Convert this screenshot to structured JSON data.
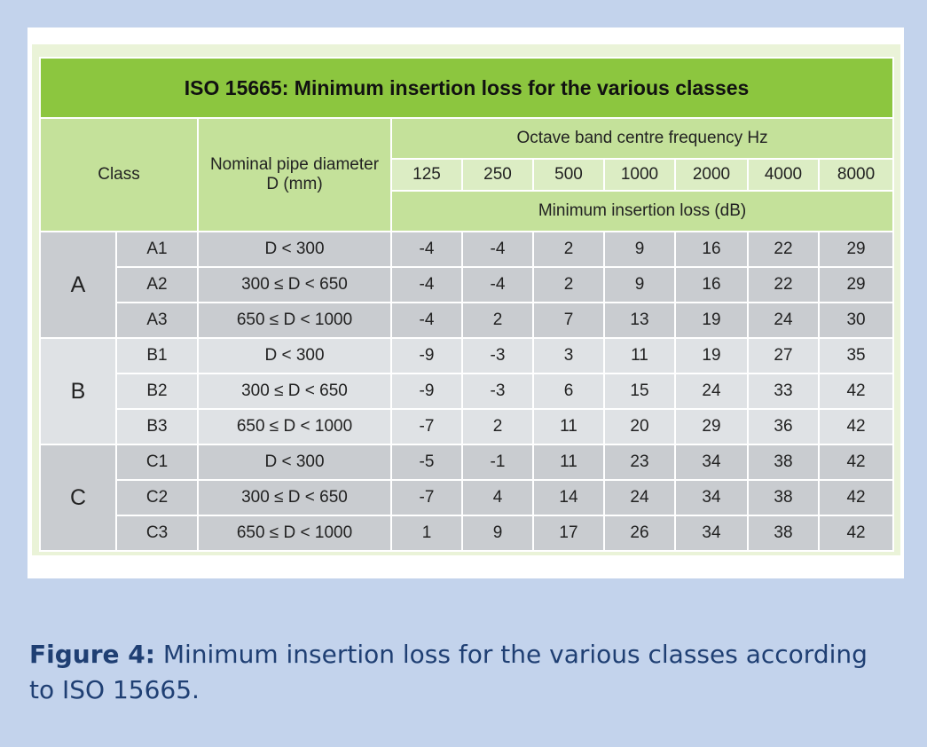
{
  "table": {
    "title": "ISO 15665: Minimum insertion loss for the various classes",
    "header": {
      "class": "Class",
      "diameter_line1": "Nominal pipe diameter",
      "diameter_line2": "D (mm)",
      "frequency_label": "Octave band centre frequency Hz",
      "frequencies": [
        "125",
        "250",
        "500",
        "1000",
        "2000",
        "4000",
        "8000"
      ],
      "loss_label": "Minimum insertion loss (dB)"
    },
    "groups": [
      {
        "class": "A",
        "rows": [
          {
            "sub": "A1",
            "diameter": "D < 300",
            "values": [
              "-4",
              "-4",
              "2",
              "9",
              "16",
              "22",
              "29"
            ]
          },
          {
            "sub": "A2",
            "diameter": "300 ≤ D < 650",
            "values": [
              "-4",
              "-4",
              "2",
              "9",
              "16",
              "22",
              "29"
            ]
          },
          {
            "sub": "A3",
            "diameter": "650 ≤  D < 1000",
            "values": [
              "-4",
              "2",
              "7",
              "13",
              "19",
              "24",
              "30"
            ]
          }
        ]
      },
      {
        "class": "B",
        "rows": [
          {
            "sub": "B1",
            "diameter": "D < 300",
            "values": [
              "-9",
              "-3",
              "3",
              "11",
              "19",
              "27",
              "35"
            ]
          },
          {
            "sub": "B2",
            "diameter": "300 ≤  D < 650",
            "values": [
              "-9",
              "-3",
              "6",
              "15",
              "24",
              "33",
              "42"
            ]
          },
          {
            "sub": "B3",
            "diameter": "650 ≤  D < 1000",
            "values": [
              "-7",
              "2",
              "11",
              "20",
              "29",
              "36",
              "42"
            ]
          }
        ]
      },
      {
        "class": "C",
        "rows": [
          {
            "sub": "C1",
            "diameter": "D < 300",
            "values": [
              "-5",
              "-1",
              "11",
              "23",
              "34",
              "38",
              "42"
            ]
          },
          {
            "sub": "C2",
            "diameter": "300 ≤  D < 650",
            "values": [
              "-7",
              "4",
              "14",
              "24",
              "34",
              "38",
              "42"
            ]
          },
          {
            "sub": "C3",
            "diameter": "650 ≤ D < 1000",
            "values": [
              "1",
              "9",
              "17",
              "26",
              "34",
              "38",
              "42"
            ]
          }
        ]
      }
    ]
  },
  "caption": {
    "label": "Figure 4:",
    "text": " Minimum insertion loss for the various classes according to ISO 15665."
  },
  "colors": {
    "page_background": "#c3d3ec",
    "title_green": "#8cc63f",
    "header_green": "#c4e19a",
    "caption_blue": "#1f3f73"
  }
}
